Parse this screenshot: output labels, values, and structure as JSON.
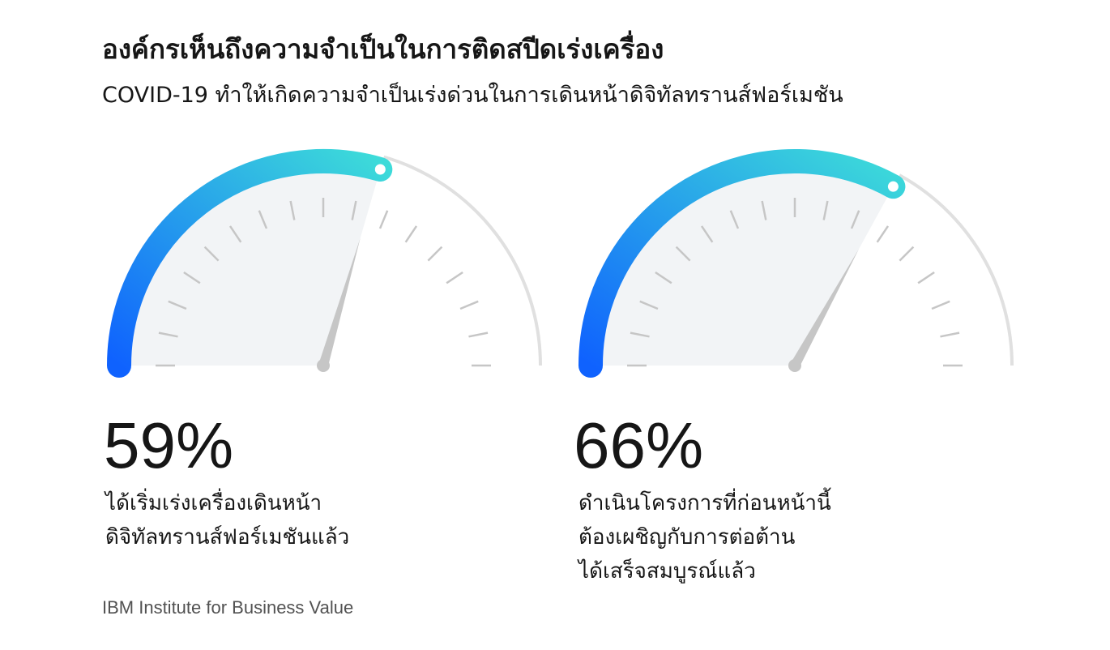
{
  "header": {
    "title": "องค์กรเห็นถึงความจำเป็นในการติดสปีดเร่งเครื่อง",
    "subtitle": "COVID-19 ทำให้เกิดความจำเป็นเร่งด่วนในการเดินหน้าดิจิทัลทรานส์ฟอร์เมชัน"
  },
  "chart_data": [
    {
      "type": "gauge",
      "value": 59,
      "range": [
        0,
        100
      ],
      "value_label": "59%",
      "caption": [
        "ได้เริ่มเร่งเครื่องเดินหน้า",
        "ดิจิทัลทรานส์ฟอร์เมชันแล้ว"
      ]
    },
    {
      "type": "gauge",
      "value": 66,
      "range": [
        0,
        100
      ],
      "value_label": "66%",
      "caption": [
        "ดำเนินโครงการที่ก่อนหน้านี้",
        "ต้องเผชิญกับการต่อต้าน",
        "ได้เสร็จสมบูรณ์แล้ว"
      ]
    }
  ],
  "footer": {
    "source": "IBM Institute for Business Value"
  },
  "colors": {
    "gradient_start": "#0f62fe",
    "gradient_end": "#3ddbd9",
    "track": "#e0e0e0",
    "fill": "#f2f4f6",
    "tick": "#c6c6c6",
    "needle": "#c6c6c6"
  }
}
